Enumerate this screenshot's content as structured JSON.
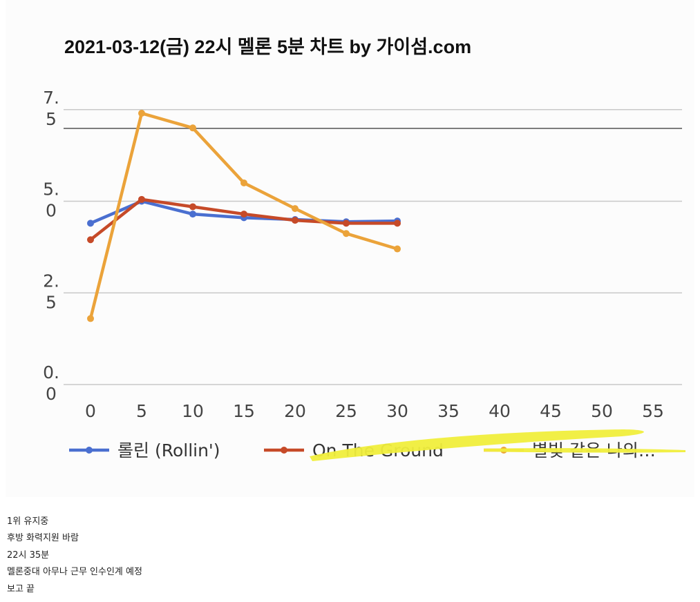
{
  "chart_data": {
    "type": "line",
    "title": "2021-03-12(금) 22시 멜론 5분 차트 by 가이섬.com",
    "x": [
      0,
      5,
      10,
      15,
      20,
      25,
      30
    ],
    "x_ticks": [
      "0",
      "5",
      "10",
      "15",
      "20",
      "25",
      "30",
      "35",
      "40",
      "45",
      "50",
      "55"
    ],
    "y_ticks": [
      {
        "value": 0.0,
        "lines": [
          "0.",
          "0"
        ]
      },
      {
        "value": 2.5,
        "lines": [
          "2.",
          "5"
        ]
      },
      {
        "value": 5.0,
        "lines": [
          "5.",
          "0"
        ]
      },
      {
        "value": 7.5,
        "lines": [
          "7.",
          "5"
        ]
      }
    ],
    "ylim": [
      0,
      7.5
    ],
    "xlim": [
      0,
      55
    ],
    "grid": true,
    "legend_position": "bottom",
    "series": [
      {
        "name": "롤린 (Rollin')",
        "color": "#4a6fd0",
        "values": [
          4.4,
          5.0,
          4.65,
          4.55,
          4.5,
          4.44,
          4.46
        ]
      },
      {
        "name": "On The Ground",
        "color": "#c64a28",
        "values": [
          3.95,
          5.05,
          4.85,
          4.65,
          4.48,
          4.4,
          4.4
        ]
      },
      {
        "name": "별빛 같은 나의…",
        "color": "#eba33a",
        "values": [
          1.8,
          7.4,
          7.0,
          5.5,
          4.8,
          4.12,
          3.7
        ]
      }
    ]
  },
  "caption": {
    "lines": [
      "1위 유지중",
      "후방 화력지원 바람",
      "22시 35분",
      "멜론중대 아무나 근무 인수인계 예정",
      "보고 끝"
    ]
  }
}
